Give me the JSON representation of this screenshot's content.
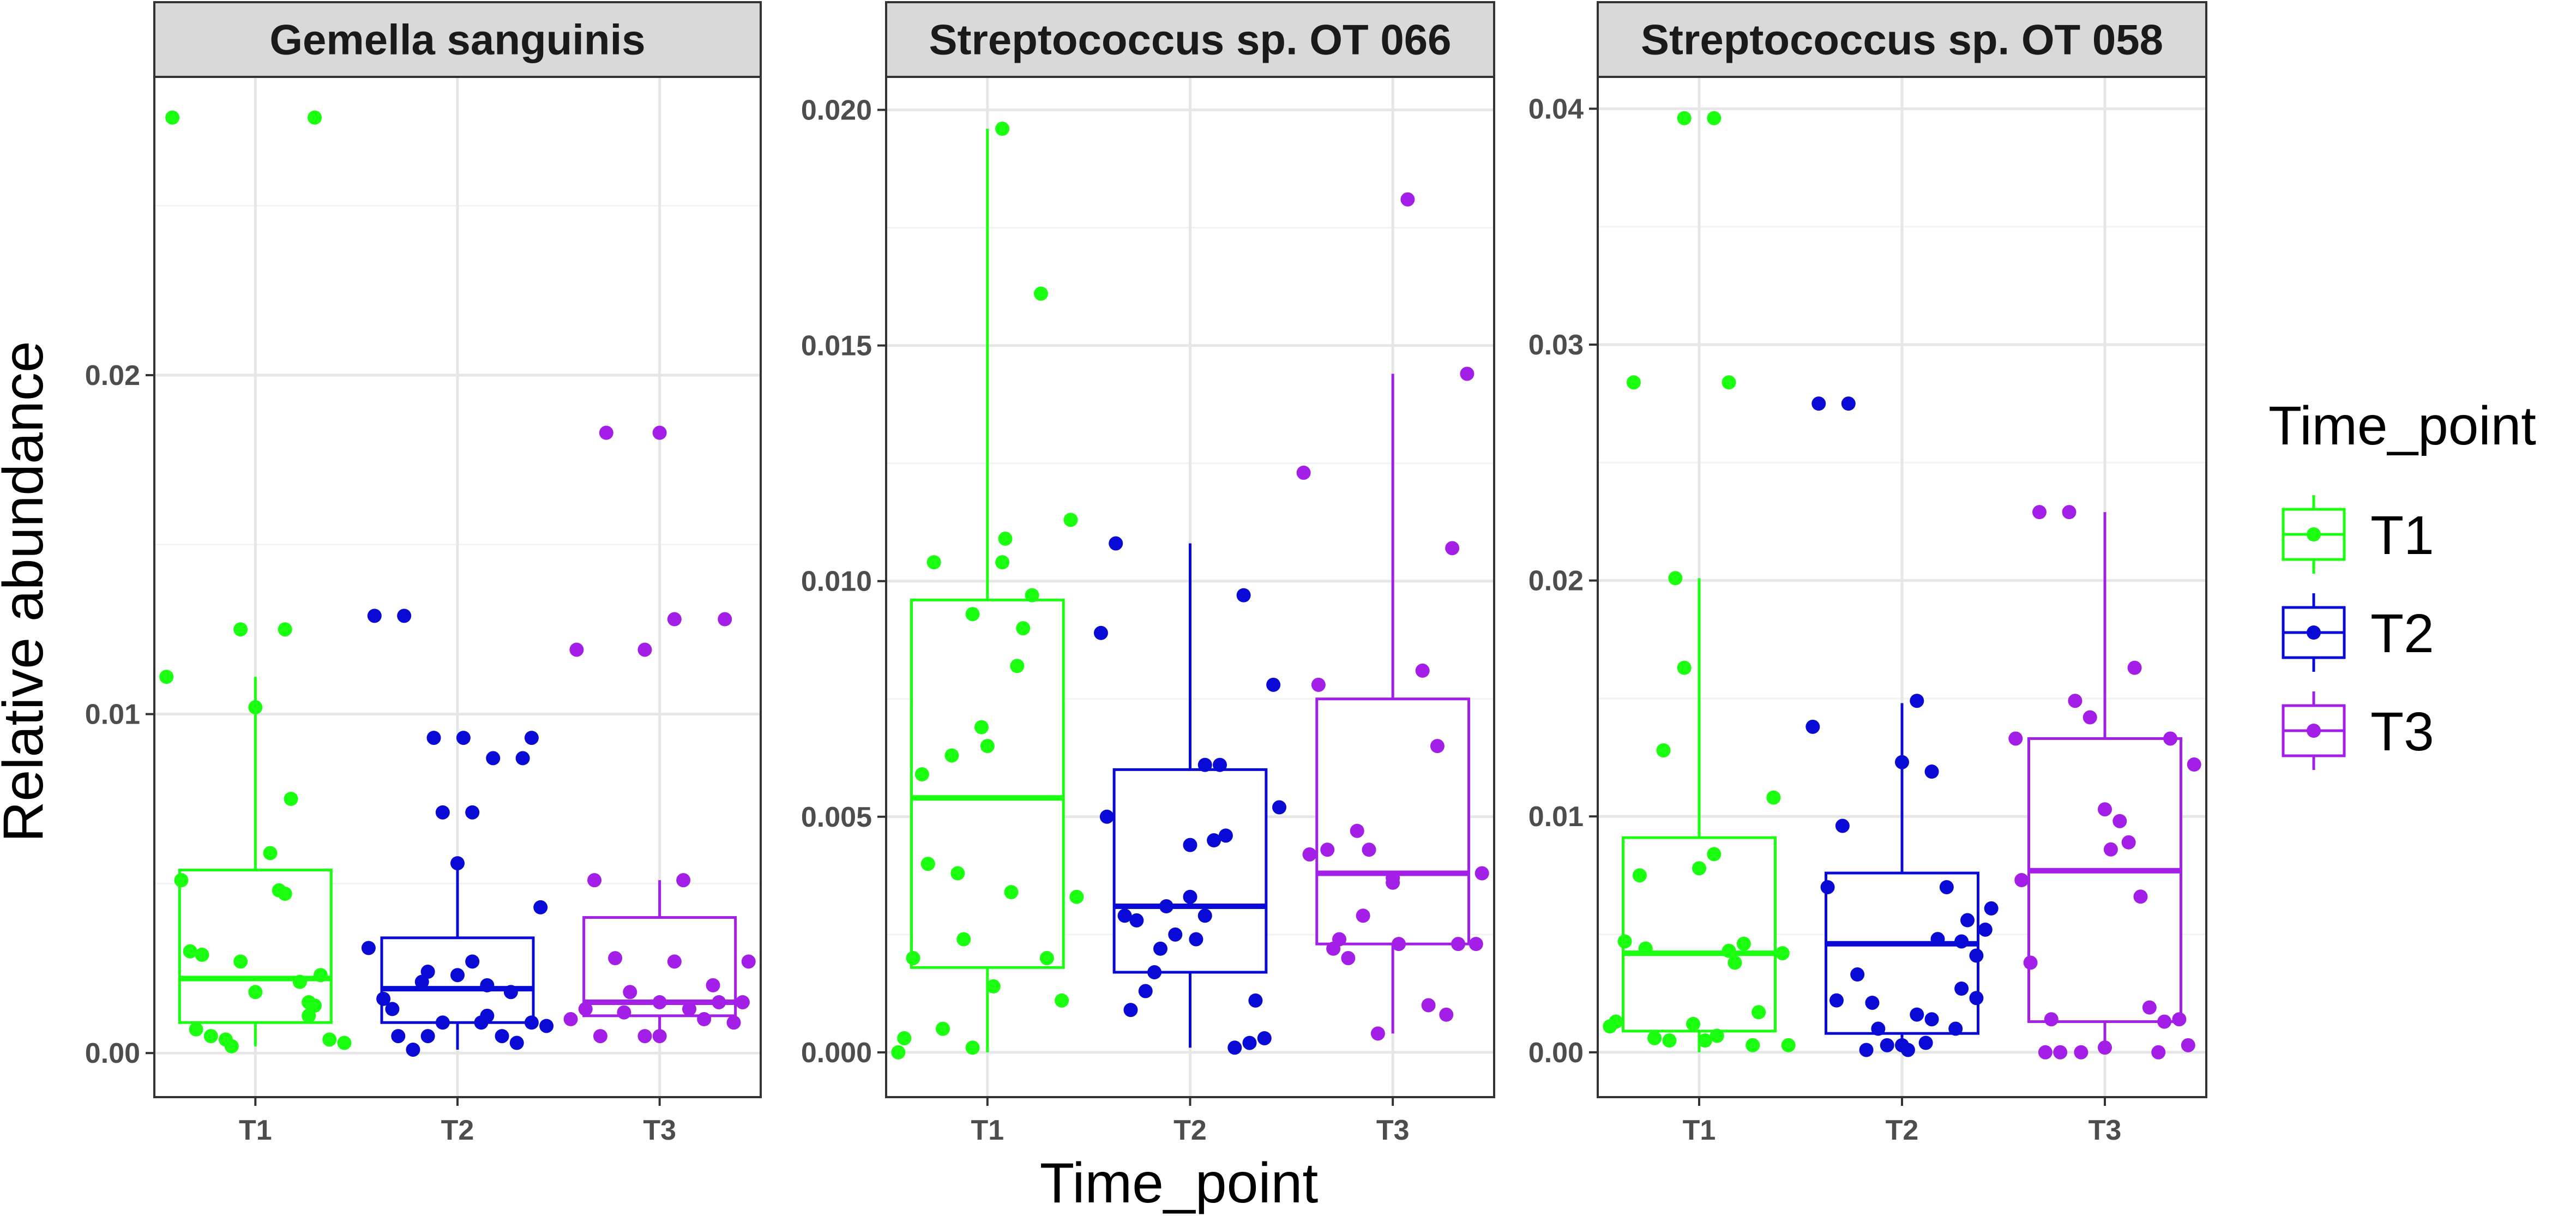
{
  "chart_data": {
    "type": "box",
    "xlabel": "Time_point",
    "ylabel": "Relative abundance",
    "categories": [
      "T1",
      "T2",
      "T3"
    ],
    "colors": {
      "T1": "#19ff0f",
      "T2": "#0a0ad7",
      "T3": "#a31fe8"
    },
    "legend": {
      "title": "Time_point",
      "position": "right",
      "entries": [
        "T1",
        "T2",
        "T3"
      ]
    },
    "panels": [
      {
        "title": "Gemella sanguinis",
        "ylim": [
          -0.0013,
          0.0288
        ],
        "yticks": [
          0.0,
          0.01,
          0.02
        ],
        "ytick_labels": [
          "0.00",
          "0.01",
          "0.02"
        ],
        "boxes": [
          {
            "group": "T1",
            "q1": 0.0009,
            "median": 0.0022,
            "q3": 0.0054,
            "whisker_low": 0.0002,
            "whisker_high": 0.0111
          },
          {
            "group": "T2",
            "q1": 0.0009,
            "median": 0.0019,
            "q3": 0.0034,
            "whisker_low": 0.0001,
            "whisker_high": 0.0056
          },
          {
            "group": "T3",
            "q1": 0.0011,
            "median": 0.0015,
            "q3": 0.004,
            "whisker_low": 0.0005,
            "whisker_high": 0.0051
          }
        ],
        "points": [
          {
            "group": "T1",
            "offsets": [
              -0.3,
              -0.25,
              -0.22,
              -0.18,
              -0.15,
              -0.1,
              -0.08,
              -0.05,
              0,
              0.05,
              0.08,
              0.1,
              0.12,
              0.15,
              0.18,
              0.2,
              0.22,
              0.25,
              0.3,
              -0.2,
              0,
              0.18,
              -0.05,
              0.1,
              0.2,
              -0.28
            ],
            "values": [
              0.0111,
              0.0051,
              0.003,
              0.0029,
              0.0005,
              0.0004,
              0.0002,
              0.0027,
              0.0102,
              0.0059,
              0.0048,
              0.0047,
              0.0075,
              0.0021,
              0.0015,
              0.0014,
              0.0023,
              0.0004,
              0.0003,
              0.0007,
              0.0018,
              0.0011,
              0.0125,
              0.0125,
              0.0276,
              0.0276
            ]
          },
          {
            "group": "T2",
            "offsets": [
              -0.3,
              -0.25,
              -0.2,
              -0.15,
              -0.1,
              -0.05,
              0,
              0.05,
              0.1,
              0.15,
              0.2,
              0.25,
              0.3,
              -0.22,
              -0.12,
              0,
              0.08,
              0.18,
              0.28,
              -0.28,
              -0.18,
              -0.08,
              0.02,
              0.12,
              0.22,
              -0.05,
              0.05,
              0.25,
              0.1,
              -0.1
            ],
            "values": [
              0.0031,
              0.0016,
              0.0005,
              0.0001,
              0.0005,
              0.0009,
              0.0023,
              0.0027,
              0.0011,
              0.0005,
              0.0003,
              0.0009,
              0.0008,
              0.0013,
              0.0021,
              0.0056,
              0.0009,
              0.0018,
              0.0043,
              0.0129,
              0.0129,
              0.0093,
              0.0093,
              0.0087,
              0.0087,
              0.0071,
              0.0071,
              0.0093,
              0.002,
              0.0024
            ]
          },
          {
            "group": "T3",
            "offsets": [
              -0.3,
              -0.25,
              -0.2,
              -0.15,
              -0.1,
              -0.05,
              0,
              0.05,
              0.1,
              0.15,
              0.2,
              0.25,
              0.3,
              -0.22,
              -0.12,
              0,
              0.08,
              0.18,
              0.28,
              -0.28,
              -0.18,
              0,
              0.22,
              0.05,
              -0.05
            ],
            "values": [
              0.001,
              0.0013,
              0.0005,
              0.0028,
              0.0018,
              0.0005,
              0.0015,
              0.0027,
              0.0013,
              0.001,
              0.0015,
              0.0009,
              0.0027,
              0.0051,
              0.0012,
              0.0005,
              0.0051,
              0.002,
              0.0015,
              0.0119,
              0.0183,
              0.0183,
              0.0128,
              0.0128,
              0.0119
            ]
          }
        ]
      },
      {
        "title": "Streptococcus sp. OT 066",
        "ylim": [
          -0.00095,
          0.0207
        ],
        "yticks": [
          0.0,
          0.005,
          0.01,
          0.015,
          0.02
        ],
        "ytick_labels": [
          "0.000",
          "0.005",
          "0.010",
          "0.015",
          "0.020"
        ],
        "boxes": [
          {
            "group": "T1",
            "q1": 0.0018,
            "median": 0.0054,
            "q3": 0.0096,
            "whisker_low": 0.0,
            "whisker_high": 0.0196
          },
          {
            "group": "T2",
            "q1": 0.0017,
            "median": 0.0031,
            "q3": 0.006,
            "whisker_low": 0.0001,
            "whisker_high": 0.0108
          },
          {
            "group": "T3",
            "q1": 0.0023,
            "median": 0.0038,
            "q3": 0.0075,
            "whisker_low": 0.0004,
            "whisker_high": 0.0144
          }
        ],
        "points": [
          {
            "group": "T1",
            "offsets": [
              -0.3,
              -0.28,
              -0.25,
              -0.2,
              -0.15,
              -0.12,
              -0.1,
              -0.05,
              -0.02,
              0,
              0.05,
              0.08,
              0.1,
              0.15,
              0.2,
              0.25,
              0.3,
              -0.22,
              -0.08,
              0.02,
              0.12,
              0.18,
              0.28,
              -0.18,
              0.06,
              -0.05,
              0.05
            ],
            "values": [
              0.0,
              0.0003,
              0.002,
              0.004,
              0.0005,
              0.0063,
              0.0038,
              0.0001,
              0.0069,
              0.0065,
              0.0104,
              0.0034,
              0.0082,
              0.0097,
              0.002,
              0.0011,
              0.0033,
              0.0059,
              0.0024,
              0.0014,
              0.009,
              0.0161,
              0.0113,
              0.0104,
              0.0109,
              0.0093,
              0.0196
            ]
          },
          {
            "group": "T2",
            "offsets": [
              -0.3,
              -0.25,
              -0.2,
              -0.15,
              -0.1,
              -0.05,
              0,
              0.05,
              0.1,
              0.15,
              0.2,
              0.25,
              0.3,
              -0.22,
              -0.12,
              0,
              0.08,
              0.18,
              0.28,
              -0.28,
              -0.18,
              -0.08,
              0.02,
              0.12,
              0.22,
              0.05
            ],
            "values": [
              0.0089,
              0.0108,
              0.0009,
              0.0013,
              0.0022,
              0.0025,
              0.0033,
              0.0061,
              0.0061,
              0.0001,
              0.0002,
              0.0003,
              0.0052,
              0.0029,
              0.0017,
              0.0044,
              0.0045,
              0.0097,
              0.0078,
              0.005,
              0.0028,
              0.0031,
              0.0024,
              0.0046,
              0.0011,
              0.0029
            ]
          },
          {
            "group": "T3",
            "offsets": [
              -0.3,
              -0.25,
              -0.22,
              -0.18,
              -0.15,
              -0.1,
              -0.05,
              0,
              0.05,
              0.1,
              0.15,
              0.2,
              0.25,
              0.3,
              -0.28,
              -0.12,
              0.02,
              0.12,
              0.22,
              0.28,
              -0.2,
              0,
              0.18,
              -0.08
            ],
            "values": [
              0.0123,
              0.0078,
              0.0043,
              0.0024,
              0.002,
              0.0029,
              0.0004,
              0.0036,
              0.0181,
              0.0081,
              0.0065,
              0.0107,
              0.0144,
              0.0038,
              0.0042,
              0.0047,
              0.0023,
              0.001,
              0.0023,
              0.0023,
              0.0022,
              0.0037,
              0.0008,
              0.0043
            ]
          }
        ]
      },
      {
        "title": "Streptococcus sp. OT 058",
        "ylim": [
          -0.0019,
          0.04135
        ],
        "yticks": [
          0.0,
          0.01,
          0.02,
          0.03,
          0.04
        ],
        "ytick_labels": [
          "0.00",
          "0.01",
          "0.02",
          "0.03",
          "0.04"
        ],
        "boxes": [
          {
            "group": "T1",
            "q1": 0.0009,
            "median": 0.0042,
            "q3": 0.0091,
            "whisker_low": 0.0,
            "whisker_high": 0.0201
          },
          {
            "group": "T2",
            "q1": 0.0008,
            "median": 0.0046,
            "q3": 0.0076,
            "whisker_low": 0.0,
            "whisker_high": 0.0148
          },
          {
            "group": "T3",
            "q1": 0.0013,
            "median": 0.0077,
            "q3": 0.0133,
            "whisker_low": 0.0,
            "whisker_high": 0.0229
          }
        ],
        "points": [
          {
            "group": "T1",
            "offsets": [
              -0.3,
              -0.28,
              -0.25,
              -0.2,
              -0.15,
              -0.12,
              -0.1,
              -0.05,
              0,
              0.02,
              0.05,
              0.1,
              0.15,
              0.2,
              0.25,
              0.3,
              -0.22,
              -0.08,
              0.12,
              0.18,
              0.28,
              -0.18,
              0.06,
              -0.02,
              -0.05,
              0.05,
              0.1
            ],
            "values": [
              0.0011,
              0.0013,
              0.0047,
              0.0075,
              0.0006,
              0.0128,
              0.0005,
              0.0163,
              0.0078,
              0.0005,
              0.0084,
              0.0043,
              0.0046,
              0.0017,
              0.0108,
              0.0003,
              0.0284,
              0.0201,
              0.0038,
              0.0003,
              0.0042,
              0.0044,
              0.0007,
              0.0012,
              0.0396,
              0.0396,
              0.0284
            ]
          },
          {
            "group": "T2",
            "offsets": [
              -0.3,
              -0.25,
              -0.2,
              -0.15,
              -0.1,
              -0.05,
              0,
              0.05,
              0.1,
              0.15,
              0.2,
              0.25,
              0.3,
              -0.22,
              -0.12,
              0,
              0.08,
              0.18,
              0.28,
              -0.28,
              -0.18,
              -0.08,
              0.02,
              0.12,
              0.22,
              0.05,
              0.1,
              0.2,
              0.25
            ],
            "values": [
              0.0138,
              0.007,
              0.0096,
              0.0033,
              0.0021,
              0.0003,
              0.0123,
              0.0149,
              0.0119,
              0.007,
              0.0047,
              0.0041,
              0.0061,
              0.0022,
              0.0001,
              0.0003,
              0.0004,
              0.001,
              0.0052,
              0.0275,
              0.0275,
              0.001,
              0.0001,
              0.0048,
              0.0056,
              0.0016,
              0.0014,
              0.0027,
              0.0023
            ]
          },
          {
            "group": "T3",
            "offsets": [
              -0.3,
              -0.28,
              -0.25,
              -0.2,
              -0.15,
              -0.1,
              -0.05,
              0,
              0.05,
              0.1,
              0.15,
              0.2,
              0.25,
              0.3,
              -0.22,
              -0.12,
              0.02,
              0.12,
              0.22,
              0.28,
              -0.18,
              0,
              0.18,
              -0.08,
              0.08
            ],
            "values": [
              0.0133,
              0.0073,
              0.0038,
              0.0,
              0.0,
              0.0149,
              0.0142,
              0.0103,
              0.0098,
              0.0163,
              0.0019,
              0.0013,
              0.0014,
              0.0122,
              0.0229,
              0.0229,
              0.0086,
              0.0066,
              0.0133,
              0.0003,
              0.0014,
              0.0002,
              0.0,
              0.0,
              0.0089
            ]
          }
        ]
      }
    ]
  }
}
